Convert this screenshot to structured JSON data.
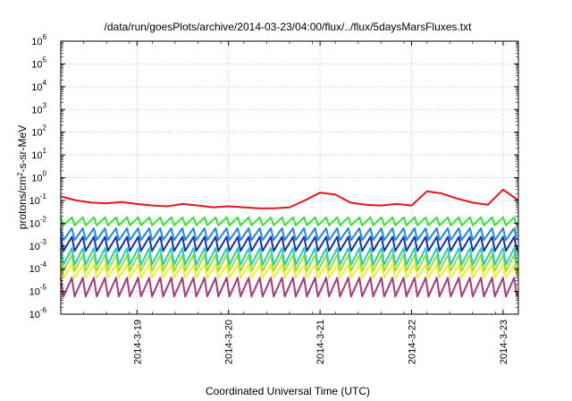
{
  "chart_data": {
    "type": "line",
    "title": "/data/run/goesPlots/archive/2014-03-23/04:00/flux/../flux/5daysMarsFluxes.txt",
    "xlabel": "Coordinated Universal Time (UTC)",
    "ylabel": "protons/cm2-s-sr-MeV",
    "y_scale": "log",
    "ylim": [
      1e-06,
      1000000.0
    ],
    "y_ticks": [
      {
        "value": 1e-06,
        "base": "10",
        "exp": "-6"
      },
      {
        "value": 1e-05,
        "base": "10",
        "exp": "-5"
      },
      {
        "value": 0.0001,
        "base": "10",
        "exp": "-4"
      },
      {
        "value": 0.001,
        "base": "10",
        "exp": "-3"
      },
      {
        "value": 0.01,
        "base": "10",
        "exp": "-2"
      },
      {
        "value": 0.1,
        "base": "10",
        "exp": "-1"
      },
      {
        "value": 1,
        "base": "10",
        "exp": "0"
      },
      {
        "value": 10,
        "base": "10",
        "exp": "1"
      },
      {
        "value": 100,
        "base": "10",
        "exp": "2"
      },
      {
        "value": 1000,
        "base": "10",
        "exp": "3"
      },
      {
        "value": 10000,
        "base": "10",
        "exp": "4"
      },
      {
        "value": 100000,
        "base": "10",
        "exp": "5"
      },
      {
        "value": 1000000,
        "base": "10",
        "exp": "6"
      }
    ],
    "xlim": [
      "2014-03-18 04:00",
      "2014-03-23 04:00"
    ],
    "x_ticks": [
      "2014-3-19",
      "2014-3-20",
      "2014-3-21",
      "2014-3-22",
      "2014-3-23"
    ],
    "grid": true,
    "series": [
      {
        "color": "#e8141c",
        "x": [
          "2014-03-18 04:00",
          "2014-03-18 08:00",
          "2014-03-18 12:00",
          "2014-03-18 16:00",
          "2014-03-18 20:00",
          "2014-03-19 00:00",
          "2014-03-19 04:00",
          "2014-03-19 08:00",
          "2014-03-19 12:00",
          "2014-03-19 16:00",
          "2014-03-19 20:00",
          "2014-03-20 00:00",
          "2014-03-20 04:00",
          "2014-03-20 08:00",
          "2014-03-20 12:00",
          "2014-03-20 16:00",
          "2014-03-20 20:00",
          "2014-03-21 00:00",
          "2014-03-21 04:00",
          "2014-03-21 08:00",
          "2014-03-21 12:00",
          "2014-03-21 16:00",
          "2014-03-21 20:00",
          "2014-03-22 00:00",
          "2014-03-22 04:00",
          "2014-03-22 08:00",
          "2014-03-22 12:00",
          "2014-03-22 16:00",
          "2014-03-22 20:00",
          "2014-03-23 00:00",
          "2014-03-23 04:00"
        ],
        "values": [
          0.15,
          0.1,
          0.08,
          0.075,
          0.085,
          0.07,
          0.06,
          0.055,
          0.07,
          0.06,
          0.05,
          0.055,
          0.05,
          0.045,
          0.045,
          0.05,
          0.1,
          0.22,
          0.18,
          0.08,
          0.065,
          0.06,
          0.07,
          0.06,
          0.25,
          0.2,
          0.12,
          0.08,
          0.065,
          0.3,
          0.1
        ]
      },
      {
        "color": "#2ee82e",
        "high": 0.018,
        "low": 0.008
      },
      {
        "color": "#1e86f0",
        "high": 0.006,
        "low": 0.0018
      },
      {
        "color": "#1030b8",
        "high": 0.0025,
        "low": 0.0006
      },
      {
        "color": "#22d0b0",
        "high": 0.0008,
        "low": 0.00015
      },
      {
        "color": "#a0e030",
        "high": 0.0004,
        "low": 8e-05
      },
      {
        "color": "#f0f028",
        "high": 0.00015,
        "low": 4e-05
      },
      {
        "color": "#a83a78",
        "high": 4e-05,
        "low": 6e-06
      }
    ],
    "oscillation_period_hours": 2.9
  }
}
